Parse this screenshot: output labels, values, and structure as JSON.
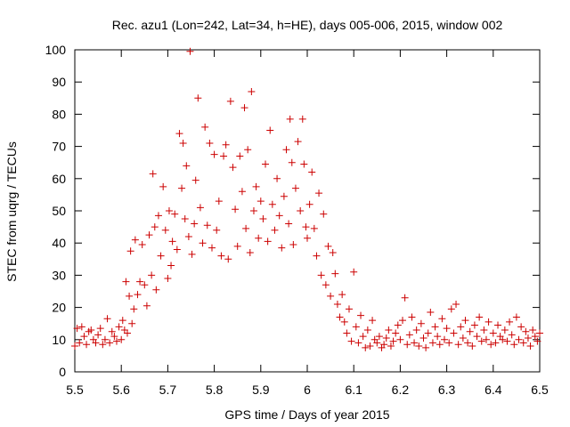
{
  "chart_data": {
    "type": "scatter",
    "title": "Rec. azu1 (Lon=242, Lat=34, h=HE), days 005-006, 2015, window 002",
    "xlabel": "GPS time / Days of year 2015",
    "ylabel": "STEC from uqrg / TECUs",
    "xlim": [
      5.5,
      6.5
    ],
    "ylim": [
      0,
      100
    ],
    "xticks": [
      "5.5",
      "5.6",
      "5.7",
      "5.8",
      "5.9",
      "6",
      "6.1",
      "6.2",
      "6.3",
      "6.4",
      "6.5"
    ],
    "yticks": [
      "0",
      "10",
      "20",
      "30",
      "40",
      "50",
      "60",
      "70",
      "80",
      "90",
      "100"
    ],
    "grid": false,
    "legend": "none",
    "marker": "plus",
    "color": "#cc0000",
    "series": [
      {
        "points": [
          [
            5.5,
            8
          ],
          [
            5.505,
            13.5
          ],
          [
            5.51,
            9
          ],
          [
            5.515,
            14
          ],
          [
            5.52,
            11
          ],
          [
            5.525,
            8.5
          ],
          [
            5.53,
            12.5
          ],
          [
            5.535,
            13
          ],
          [
            5.54,
            10
          ],
          [
            5.545,
            9
          ],
          [
            5.55,
            11.5
          ],
          [
            5.555,
            13.5
          ],
          [
            5.56,
            8.5
          ],
          [
            5.565,
            10
          ],
          [
            5.57,
            16.5
          ],
          [
            5.575,
            9
          ],
          [
            5.58,
            12.5
          ],
          [
            5.585,
            11
          ],
          [
            5.59,
            9.5
          ],
          [
            5.595,
            14
          ],
          [
            5.6,
            10
          ],
          [
            5.603,
            16
          ],
          [
            5.607,
            13
          ],
          [
            5.61,
            28
          ],
          [
            5.613,
            12
          ],
          [
            5.617,
            23.5
          ],
          [
            5.62,
            37.5
          ],
          [
            5.623,
            15
          ],
          [
            5.627,
            19.5
          ],
          [
            5.63,
            41
          ],
          [
            5.635,
            24
          ],
          [
            5.64,
            28
          ],
          [
            5.645,
            39.5
          ],
          [
            5.65,
            27
          ],
          [
            5.655,
            20.5
          ],
          [
            5.66,
            42.5
          ],
          [
            5.665,
            30
          ],
          [
            5.668,
            61.5
          ],
          [
            5.672,
            45
          ],
          [
            5.675,
            25.5
          ],
          [
            5.68,
            48.5
          ],
          [
            5.685,
            36
          ],
          [
            5.69,
            57.5
          ],
          [
            5.695,
            44
          ],
          [
            5.7,
            29
          ],
          [
            5.703,
            50
          ],
          [
            5.707,
            33
          ],
          [
            5.71,
            40.5
          ],
          [
            5.715,
            49
          ],
          [
            5.72,
            38
          ],
          [
            5.725,
            74
          ],
          [
            5.73,
            57
          ],
          [
            5.733,
            71
          ],
          [
            5.737,
            47.5
          ],
          [
            5.74,
            64
          ],
          [
            5.745,
            42
          ],
          [
            5.748,
            99.5
          ],
          [
            5.752,
            36.5
          ],
          [
            5.757,
            46
          ],
          [
            5.76,
            59.5
          ],
          [
            5.765,
            85
          ],
          [
            5.77,
            51
          ],
          [
            5.775,
            40
          ],
          [
            5.78,
            76
          ],
          [
            5.785,
            45.5
          ],
          [
            5.79,
            71
          ],
          [
            5.795,
            38.5
          ],
          [
            5.8,
            67.5
          ],
          [
            5.805,
            44
          ],
          [
            5.81,
            53
          ],
          [
            5.815,
            36
          ],
          [
            5.82,
            67
          ],
          [
            5.825,
            70.5
          ],
          [
            5.83,
            35
          ],
          [
            5.835,
            84
          ],
          [
            5.84,
            63.5
          ],
          [
            5.845,
            50.5
          ],
          [
            5.85,
            39
          ],
          [
            5.855,
            67
          ],
          [
            5.86,
            56
          ],
          [
            5.865,
            82
          ],
          [
            5.868,
            44.5
          ],
          [
            5.872,
            69
          ],
          [
            5.877,
            37
          ],
          [
            5.88,
            87
          ],
          [
            5.885,
            50
          ],
          [
            5.89,
            57.5
          ],
          [
            5.895,
            41.5
          ],
          [
            5.9,
            53
          ],
          [
            5.905,
            47.5
          ],
          [
            5.91,
            64.5
          ],
          [
            5.915,
            40.5
          ],
          [
            5.92,
            75
          ],
          [
            5.925,
            52
          ],
          [
            5.93,
            44
          ],
          [
            5.935,
            60
          ],
          [
            5.94,
            48.5
          ],
          [
            5.945,
            38.5
          ],
          [
            5.95,
            54.5
          ],
          [
            5.955,
            69
          ],
          [
            5.96,
            46
          ],
          [
            5.963,
            78.5
          ],
          [
            5.967,
            65
          ],
          [
            5.97,
            39.5
          ],
          [
            5.975,
            57
          ],
          [
            5.98,
            71.5
          ],
          [
            5.985,
            50
          ],
          [
            5.99,
            78.5
          ],
          [
            5.993,
            64.5
          ],
          [
            5.997,
            45
          ],
          [
            6.0,
            41.5
          ],
          [
            6.005,
            52
          ],
          [
            6.01,
            62
          ],
          [
            6.015,
            44.5
          ],
          [
            6.02,
            36
          ],
          [
            6.025,
            55.5
          ],
          [
            6.03,
            30
          ],
          [
            6.035,
            49
          ],
          [
            6.04,
            27
          ],
          [
            6.045,
            39
          ],
          [
            6.05,
            23.5
          ],
          [
            6.055,
            37
          ],
          [
            6.06,
            30.5
          ],
          [
            6.065,
            21
          ],
          [
            6.07,
            17
          ],
          [
            6.075,
            24
          ],
          [
            6.08,
            15.5
          ],
          [
            6.085,
            12
          ],
          [
            6.09,
            19.5
          ],
          [
            6.095,
            9.5
          ],
          [
            6.1,
            31
          ],
          [
            6.105,
            14
          ],
          [
            6.11,
            9
          ],
          [
            6.115,
            17.5
          ],
          [
            6.12,
            11
          ],
          [
            6.125,
            7.5
          ],
          [
            6.13,
            13
          ],
          [
            6.135,
            8
          ],
          [
            6.14,
            16
          ],
          [
            6.145,
            10
          ],
          [
            6.15,
            9
          ],
          [
            6.155,
            11
          ],
          [
            6.16,
            7.5
          ],
          [
            6.165,
            8.5
          ],
          [
            6.17,
            10.5
          ],
          [
            6.175,
            13
          ],
          [
            6.18,
            8
          ],
          [
            6.185,
            9.5
          ],
          [
            6.19,
            12
          ],
          [
            6.195,
            14.5
          ],
          [
            6.2,
            10
          ],
          [
            6.205,
            16
          ],
          [
            6.21,
            23
          ],
          [
            6.215,
            8.5
          ],
          [
            6.22,
            11.5
          ],
          [
            6.225,
            17
          ],
          [
            6.23,
            9
          ],
          [
            6.235,
            13
          ],
          [
            6.24,
            8
          ],
          [
            6.245,
            15
          ],
          [
            6.25,
            10.5
          ],
          [
            6.255,
            7.5
          ],
          [
            6.26,
            12
          ],
          [
            6.265,
            18.5
          ],
          [
            6.27,
            9
          ],
          [
            6.275,
            14
          ],
          [
            6.28,
            11
          ],
          [
            6.285,
            8.5
          ],
          [
            6.29,
            16.5
          ],
          [
            6.295,
            10
          ],
          [
            6.3,
            13.5
          ],
          [
            6.305,
            9
          ],
          [
            6.31,
            19.5
          ],
          [
            6.315,
            12
          ],
          [
            6.32,
            21
          ],
          [
            6.325,
            8.5
          ],
          [
            6.33,
            14
          ],
          [
            6.335,
            10.5
          ],
          [
            6.34,
            16
          ],
          [
            6.345,
            9
          ],
          [
            6.35,
            12.5
          ],
          [
            6.355,
            8
          ],
          [
            6.36,
            14.5
          ],
          [
            6.365,
            11
          ],
          [
            6.37,
            17
          ],
          [
            6.375,
            9.5
          ],
          [
            6.38,
            13
          ],
          [
            6.385,
            10
          ],
          [
            6.39,
            15.5
          ],
          [
            6.395,
            8.5
          ],
          [
            6.4,
            12
          ],
          [
            6.405,
            9
          ],
          [
            6.41,
            14.5
          ],
          [
            6.415,
            11
          ],
          [
            6.42,
            10
          ],
          [
            6.425,
            13
          ],
          [
            6.43,
            9.5
          ],
          [
            6.435,
            15.5
          ],
          [
            6.44,
            11.5
          ],
          [
            6.445,
            8.5
          ],
          [
            6.45,
            17
          ],
          [
            6.455,
            10
          ],
          [
            6.46,
            14
          ],
          [
            6.465,
            9
          ],
          [
            6.47,
            12.5
          ],
          [
            6.475,
            10.5
          ],
          [
            6.48,
            8
          ],
          [
            6.485,
            13
          ],
          [
            6.49,
            11
          ],
          [
            6.495,
            9.5
          ],
          [
            6.5,
            12
          ]
        ]
      }
    ]
  }
}
